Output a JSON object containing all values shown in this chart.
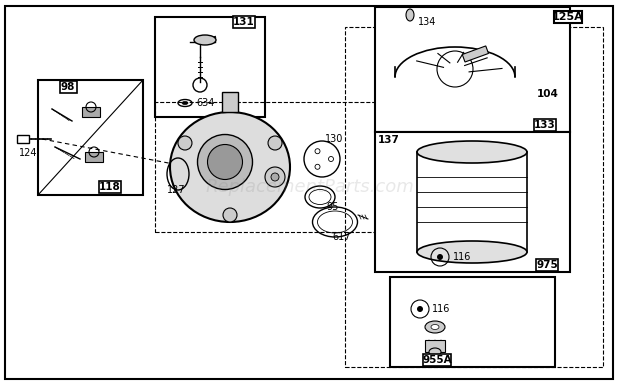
{
  "bg_color": "#ffffff",
  "watermark": "ReplacementParts.com",
  "watermark_alpha": 0.18,
  "watermark_fontsize": 13
}
